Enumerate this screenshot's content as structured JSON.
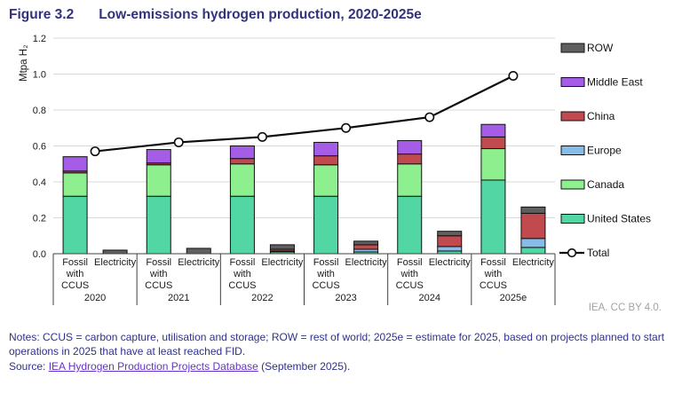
{
  "header": {
    "figure_label": "Figure 3.2",
    "title": "Low-emissions hydrogen production, 2020-2025e"
  },
  "footer": {
    "credit": "IEA. CC BY 4.0.",
    "notes": "Notes: CCUS = carbon capture, utilisation and storage; ROW = rest of world; 2025e = estimate for 2025, based on projects planned to start operations in 2025 that have at least reached FID.",
    "source_prefix": "Source: ",
    "source_link": "IEA Hydrogen Production Projects Database",
    "source_suffix": " (September 2025)."
  },
  "chart_data": {
    "type": "bar",
    "subtype": "stacked-bars-with-total-line",
    "title": "Low-emissions hydrogen production, 2020-2025e",
    "ylabel": "Mtpa H₂",
    "ylim": [
      0,
      1.2
    ],
    "yticks": [
      "0.0",
      "0.2",
      "0.4",
      "0.6",
      "0.8",
      "1.0",
      "1.2"
    ],
    "grid": true,
    "legend_position": "right",
    "groups": [
      "2020",
      "2021",
      "2022",
      "2023",
      "2024",
      "2025e"
    ],
    "bar_types": [
      "Fossil with CCUS",
      "Electricity"
    ],
    "bar_type_label_lines": [
      [
        "Fossil",
        "with",
        "CCUS"
      ],
      [
        "Electricity"
      ]
    ],
    "regions_bottom_to_top": [
      "United States",
      "Canada",
      "Europe",
      "China",
      "Middle East",
      "ROW"
    ],
    "region_colors": {
      "United States": "#52d6a4",
      "Canada": "#8def8d",
      "Europe": "#87bbe8",
      "China": "#c04a4d",
      "Middle East": "#a55ce6",
      "ROW": "#5f5f5f"
    },
    "line_color": "#0d0d0d",
    "grid_color": "#d9d9d9",
    "axis_color": "#404040",
    "bars": [
      {
        "group": "2020",
        "type": "Fossil with CCUS",
        "values": {
          "United States": 0.32,
          "Canada": 0.13,
          "Europe": 0,
          "China": 0.01,
          "Middle East": 0.08,
          "ROW": 0
        }
      },
      {
        "group": "2020",
        "type": "Electricity",
        "values": {
          "United States": 0,
          "Canada": 0,
          "Europe": 0,
          "China": 0,
          "Middle East": 0,
          "ROW": 0.02
        }
      },
      {
        "group": "2021",
        "type": "Fossil with CCUS",
        "values": {
          "United States": 0.32,
          "Canada": 0.175,
          "Europe": 0,
          "China": 0.01,
          "Middle East": 0.075,
          "ROW": 0
        }
      },
      {
        "group": "2021",
        "type": "Electricity",
        "values": {
          "United States": 0,
          "Canada": 0,
          "Europe": 0,
          "China": 0,
          "Middle East": 0,
          "ROW": 0.03
        }
      },
      {
        "group": "2022",
        "type": "Fossil with CCUS",
        "values": {
          "United States": 0.32,
          "Canada": 0.18,
          "Europe": 0,
          "China": 0.03,
          "Middle East": 0.07,
          "ROW": 0
        }
      },
      {
        "group": "2022",
        "type": "Electricity",
        "values": {
          "United States": 0.01,
          "Canada": 0,
          "Europe": 0.005,
          "China": 0.01,
          "Middle East": 0,
          "ROW": 0.025
        }
      },
      {
        "group": "2023",
        "type": "Fossil with CCUS",
        "values": {
          "United States": 0.32,
          "Canada": 0.175,
          "Europe": 0,
          "China": 0.05,
          "Middle East": 0.075,
          "ROW": 0
        }
      },
      {
        "group": "2023",
        "type": "Electricity",
        "values": {
          "United States": 0.01,
          "Canada": 0,
          "Europe": 0.015,
          "China": 0.025,
          "Middle East": 0,
          "ROW": 0.02
        }
      },
      {
        "group": "2024",
        "type": "Fossil with CCUS",
        "values": {
          "United States": 0.32,
          "Canada": 0.18,
          "Europe": 0,
          "China": 0.055,
          "Middle East": 0.075,
          "ROW": 0
        }
      },
      {
        "group": "2024",
        "type": "Electricity",
        "values": {
          "United States": 0.015,
          "Canada": 0,
          "Europe": 0.025,
          "China": 0.06,
          "Middle East": 0,
          "ROW": 0.025
        }
      },
      {
        "group": "2025e",
        "type": "Fossil with CCUS",
        "values": {
          "United States": 0.41,
          "Canada": 0.175,
          "Europe": 0,
          "China": 0.065,
          "Middle East": 0.07,
          "ROW": 0
        }
      },
      {
        "group": "2025e",
        "type": "Electricity",
        "values": {
          "United States": 0.035,
          "Canada": 0,
          "Europe": 0.05,
          "China": 0.14,
          "Middle East": 0,
          "ROW": 0.035
        }
      }
    ],
    "total_line": {
      "label": "Total",
      "values": [
        0.57,
        0.62,
        0.65,
        0.7,
        0.76,
        0.99
      ]
    },
    "legend_top_to_bottom": [
      "ROW",
      "Middle East",
      "China",
      "Europe",
      "Canada",
      "United States",
      "Total"
    ]
  }
}
